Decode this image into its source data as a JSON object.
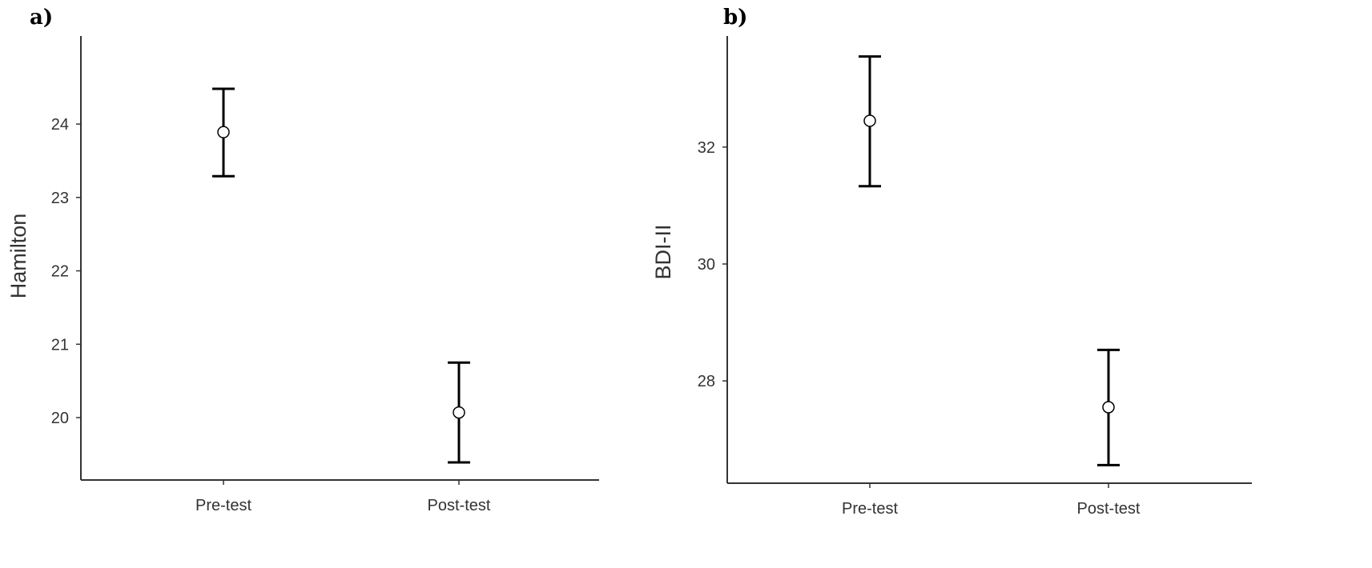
{
  "chart_data": [
    {
      "panel_label": "a)",
      "type": "scatter",
      "ylabel": "Hamilton",
      "xlabel": "",
      "categories": [
        "Pre-test",
        "Post-test"
      ],
      "ylim": [
        19.15,
        25.2
      ],
      "yticks": [
        "20",
        "21",
        "22",
        "23",
        "24"
      ],
      "grid": false,
      "series": [
        {
          "values": [
            23.89,
            20.07
          ],
          "ci_lower": [
            23.29,
            19.39
          ],
          "ci_upper": [
            24.48,
            20.75
          ]
        }
      ]
    },
    {
      "panel_label": "b)",
      "type": "scatter",
      "ylabel": "BDI-II",
      "xlabel": "",
      "categories": [
        "Pre-test",
        "Post-test"
      ],
      "ylim": [
        26.25,
        33.9
      ],
      "yticks": [
        "28",
        "30",
        "32"
      ],
      "grid": false,
      "series": [
        {
          "values": [
            32.45,
            27.55
          ],
          "ci_lower": [
            31.33,
            26.56
          ],
          "ci_upper": [
            33.55,
            28.53
          ]
        }
      ]
    }
  ]
}
